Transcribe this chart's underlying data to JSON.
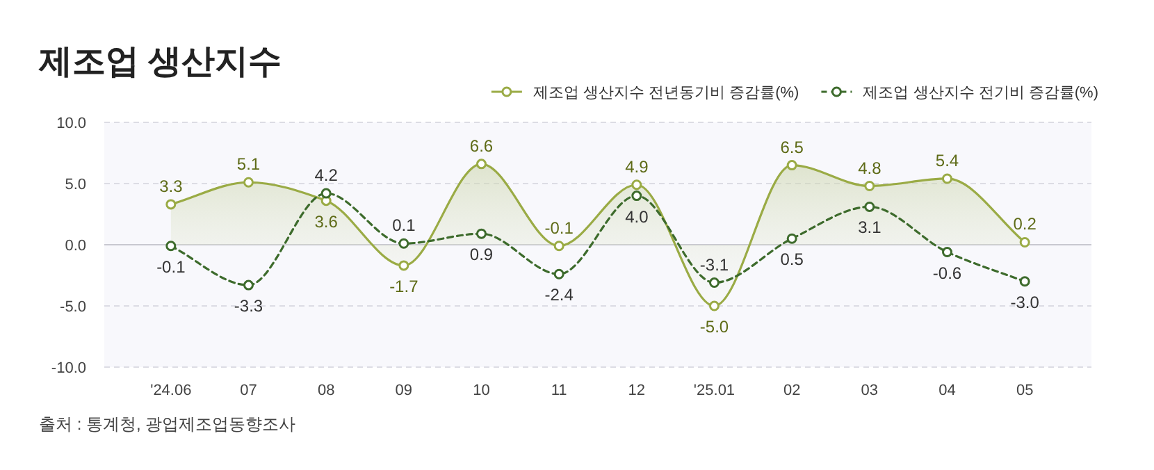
{
  "chart_data": {
    "type": "line",
    "title": "제조업 생산지수",
    "categories": [
      "'24.06",
      "07",
      "08",
      "09",
      "10",
      "11",
      "12",
      "'25.01",
      "02",
      "03",
      "04",
      "05"
    ],
    "series": [
      {
        "name": "제조업 생산지수 전년동기비 증감률(%)",
        "type": "area",
        "color": "#9aab45",
        "line_style": "solid",
        "values": [
          3.3,
          5.1,
          3.6,
          -1.7,
          6.6,
          -0.1,
          4.9,
          -5.0,
          6.5,
          4.8,
          5.4,
          0.2
        ],
        "value_labels": [
          "3.3",
          "5.1",
          "3.6",
          "-1.7",
          "6.6",
          "-0.1",
          "4.9",
          "-5.0",
          "6.5",
          "4.8",
          "5.4",
          "0.2"
        ]
      },
      {
        "name": "제조업 생산지수 전기비 증감률(%)",
        "type": "line",
        "color": "#3d6b2c",
        "line_style": "dashed",
        "values": [
          -0.1,
          -3.3,
          4.2,
          0.1,
          0.9,
          -2.4,
          4.0,
          -3.1,
          0.5,
          3.1,
          -0.6,
          -3.0
        ],
        "value_labels": [
          "-0.1",
          "-3.3",
          "4.2",
          "0.1",
          "0.9",
          "-2.4",
          "4.0",
          "-3.1",
          "0.5",
          "3.1",
          "-0.6",
          "-3.0"
        ]
      }
    ],
    "ylim": [
      -10,
      10
    ],
    "yticks": [
      {
        "value": 10,
        "label": "10.0"
      },
      {
        "value": 5,
        "label": "5.0"
      },
      {
        "value": 0,
        "label": "0.0"
      },
      {
        "value": -5,
        "label": "-5.0"
      },
      {
        "value": -10,
        "label": "-10.0"
      }
    ],
    "grid": "y",
    "legend": "top right",
    "marker": "circle",
    "annotations": [
      "출처 : 통계청, 광업제조업동향조사"
    ]
  }
}
